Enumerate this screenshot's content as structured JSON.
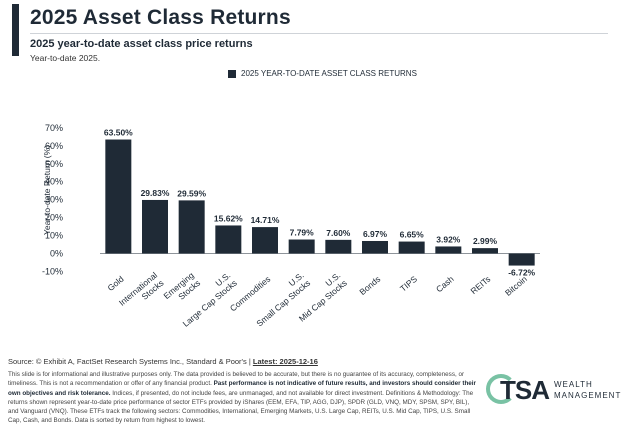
{
  "header": {
    "title": "2025 Asset Class Returns",
    "subtitle": "2025 year-to-date asset class price returns",
    "subsubtitle": "Year-to-date 2025."
  },
  "chart_data": {
    "type": "bar",
    "legend": "2025 YEAR-TO-DATE ASSET CLASS RETURNS",
    "legend_position": "top-center",
    "ylabel": "Year-to-date Return (%)",
    "xlabel": "",
    "ylim": [
      -10,
      70
    ],
    "yticks": [
      -10,
      0,
      10,
      20,
      30,
      40,
      50,
      60,
      70
    ],
    "ytick_labels": [
      "-10%",
      "0%",
      "10%",
      "20%",
      "30%",
      "40%",
      "50%",
      "60%",
      "70%"
    ],
    "grid": false,
    "categories": [
      "Gold",
      "International Stocks",
      "Emerging Stocks",
      "U.S. Large Cap Stocks",
      "Commodities",
      "U.S. Small Cap Stocks",
      "U.S. Mid Cap Stocks",
      "Bonds",
      "TIPS",
      "Cash",
      "REITs",
      "Bitcoin"
    ],
    "values": [
      63.5,
      29.83,
      29.59,
      15.62,
      14.71,
      7.79,
      7.6,
      6.97,
      6.65,
      3.92,
      2.99,
      -6.72
    ],
    "value_labels": [
      "63.50%",
      "29.83%",
      "29.59%",
      "15.62%",
      "14.71%",
      "7.79%",
      "7.60%",
      "6.97%",
      "6.65%",
      "3.92%",
      "2.99%",
      "-6.72%"
    ],
    "bar_color": "#1f2a36"
  },
  "footer": {
    "source_prefix": "Source: © Exhibit A, FactSet Research Systems Inc., Standard & Poor's |",
    "source_latest": "Latest: 2025-12-16",
    "disclaimer_part1": "This slide is for informational and illustrative purposes only. The data provided is believed to be accurate, but there is no guarantee of its accuracy, completeness, or timeliness. This is not a recommendation or offer of any financial product.",
    "disclaimer_bold": "Past performance is not indicative of future results, and investors should consider their own objectives and risk tolerance.",
    "disclaimer_part2": "Indices, if presented, do not include fees, are unmanaged, and not available for direct investment. Definitions & Methodology: The returns shown represent year-to-date price performance of sector ETFs provided by iShares (EEM, EFA, TIP, AGG, DJP), SPDR (GLD, VNQ, MDY, SPSM, SPY, BIL), and Vanguard (VNQ). These ETFs track the following sectors: Commodities, International, Emerging Markets, U.S. Large Cap, REITs, U.S. Mid Cap, TIPS, U.S. Small Cap, Cash, and Bonds. Data is sorted by return from highest to lowest."
  },
  "logo": {
    "text": "TSA",
    "line1": "WEALTH",
    "line2": "MANAGEMENT",
    "accent_color": "#79c2a4"
  }
}
